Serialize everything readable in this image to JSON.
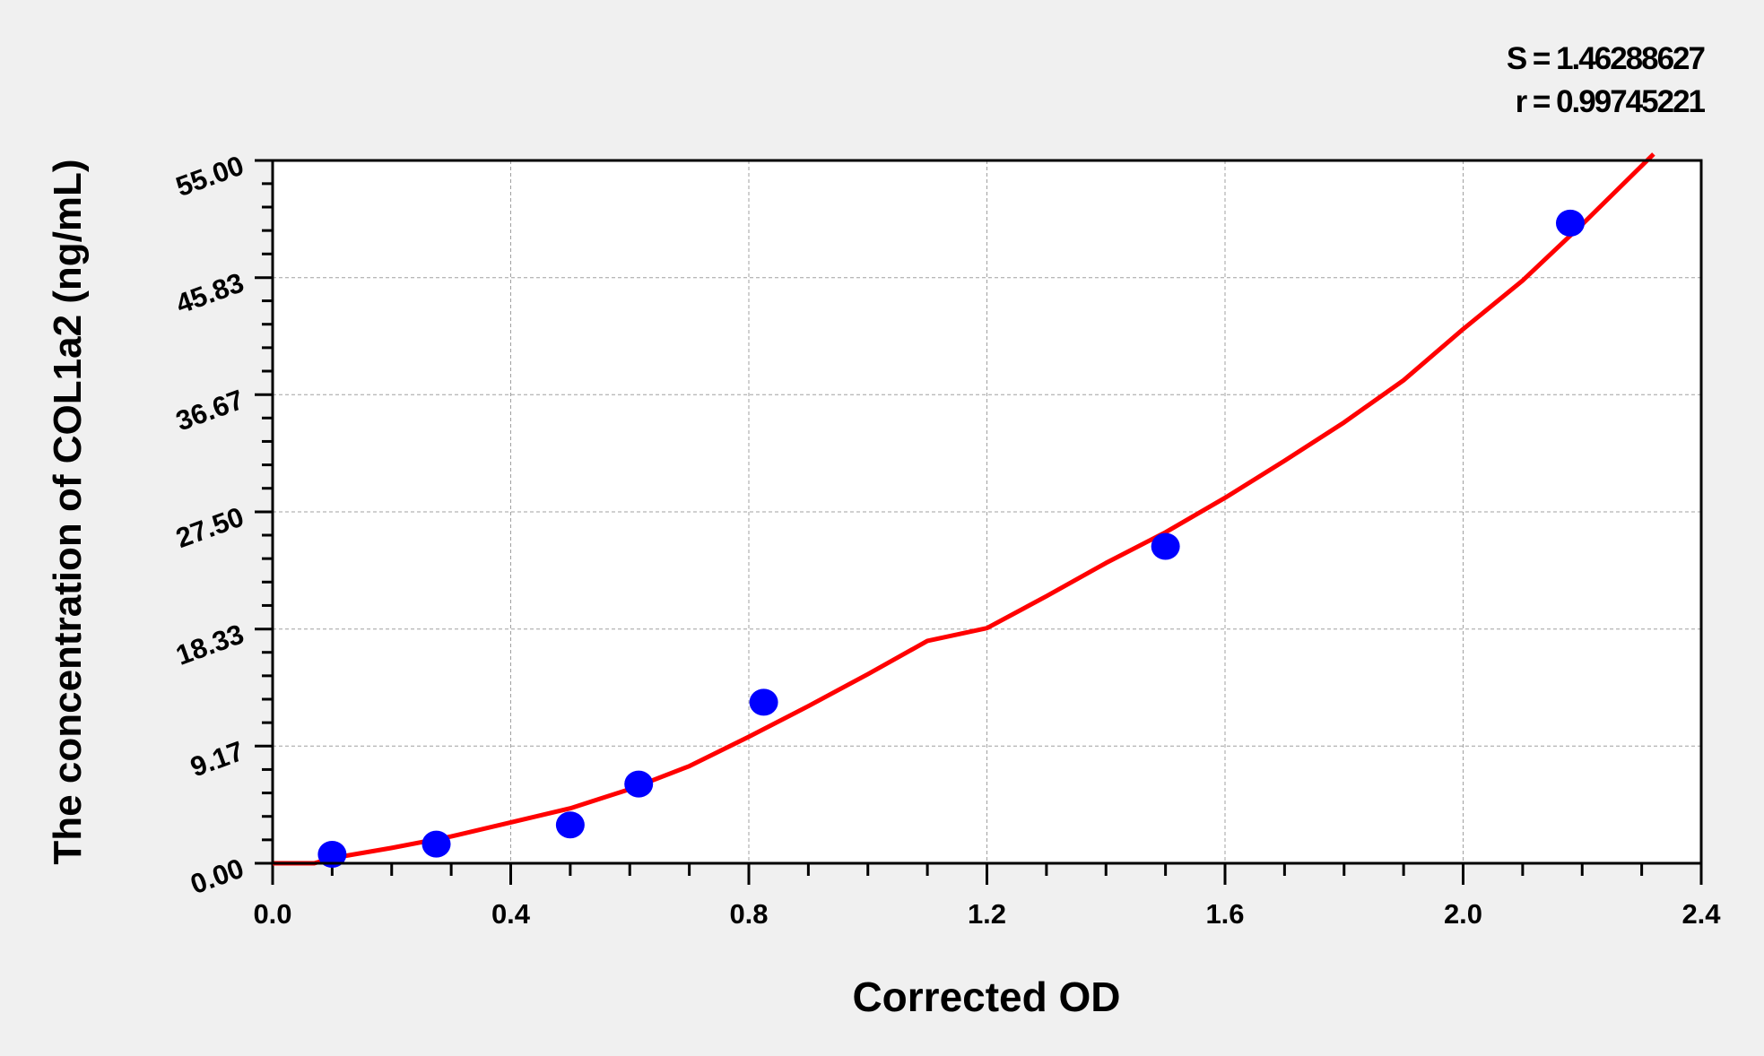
{
  "chart_data": {
    "type": "scatter",
    "xlabel": "Corrected OD",
    "ylabel": "The concentration of COL1a2 (ng/mL)",
    "xlim": [
      0,
      2.4
    ],
    "ylim": [
      0,
      55
    ],
    "x_ticks": [
      "0.0",
      "0.4",
      "0.8",
      "1.2",
      "1.6",
      "2.0",
      "2.4"
    ],
    "x_tick_values": [
      0,
      0.4,
      0.8,
      1.2,
      1.6,
      2.0,
      2.4
    ],
    "y_ticks": [
      "0.00",
      "9.17",
      "18.33",
      "27.50",
      "36.67",
      "45.83",
      "55.00"
    ],
    "y_tick_values": [
      0,
      9.17,
      18.33,
      27.5,
      36.67,
      45.83,
      55
    ],
    "grid": true,
    "annotations": {
      "s": "S = 1.46288627",
      "r": "r = 0.99745221"
    },
    "points": [
      {
        "x": 0.1,
        "y": 0.7
      },
      {
        "x": 0.275,
        "y": 1.5
      },
      {
        "x": 0.5,
        "y": 3.0
      },
      {
        "x": 0.615,
        "y": 6.2
      },
      {
        "x": 0.825,
        "y": 12.6
      },
      {
        "x": 1.5,
        "y": 24.8
      },
      {
        "x": 2.18,
        "y": 50.1
      }
    ],
    "fit_curve": [
      [
        0.0,
        0.0
      ],
      [
        0.07,
        0.0
      ],
      [
        0.1,
        0.4
      ],
      [
        0.2,
        1.2
      ],
      [
        0.3,
        2.1
      ],
      [
        0.4,
        3.2
      ],
      [
        0.5,
        4.3
      ],
      [
        0.6,
        5.8
      ],
      [
        0.7,
        7.6
      ],
      [
        0.8,
        9.9
      ],
      [
        0.9,
        12.3
      ],
      [
        1.0,
        14.8
      ],
      [
        1.1,
        17.4
      ],
      [
        1.2,
        18.4
      ],
      [
        1.3,
        20.9
      ],
      [
        1.4,
        23.5
      ],
      [
        1.5,
        25.9
      ],
      [
        1.6,
        28.6
      ],
      [
        1.7,
        31.5
      ],
      [
        1.8,
        34.5
      ],
      [
        1.9,
        37.8
      ],
      [
        2.0,
        41.8
      ],
      [
        2.1,
        45.6
      ],
      [
        2.2,
        50.0
      ],
      [
        2.32,
        55.5
      ]
    ],
    "colors": {
      "points": "#0000ff",
      "curve": "#ff0000",
      "grid": "#a0a0a0",
      "background": "#f0f0f0",
      "plot_bg": "#ffffff"
    }
  }
}
